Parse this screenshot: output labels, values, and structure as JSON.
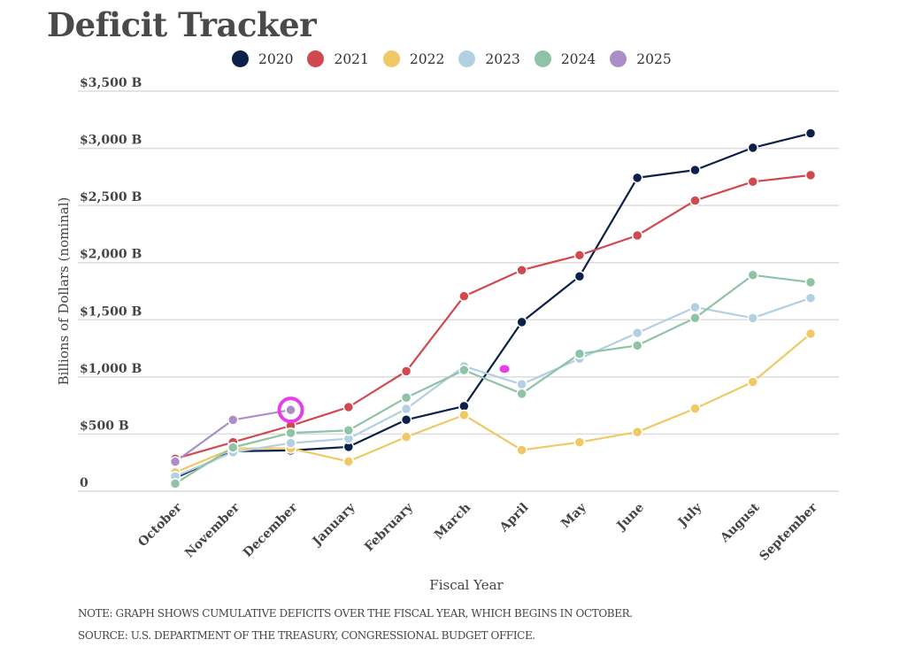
{
  "title": "Deficit Tracker",
  "chart_data": {
    "type": "line",
    "title": "Deficit Tracker",
    "xlabel": "Fiscal Year",
    "ylabel": "Billions of Dollars (nominal)",
    "ylim": [
      0,
      3500
    ],
    "grid": true,
    "legend_position": "top-center",
    "yticks": [
      {
        "value": 0,
        "label": "0"
      },
      {
        "value": 500,
        "label": "$500 B"
      },
      {
        "value": 1000,
        "label": "$1,000 B"
      },
      {
        "value": 1500,
        "label": "$1,500 B"
      },
      {
        "value": 2000,
        "label": "$2,000 B"
      },
      {
        "value": 2500,
        "label": "$2,500 B"
      },
      {
        "value": 3000,
        "label": "$3,000 B"
      },
      {
        "value": 3500,
        "label": "$3,500 B"
      }
    ],
    "categories": [
      "October",
      "November",
      "December",
      "January",
      "February",
      "March",
      "April",
      "May",
      "June",
      "July",
      "August",
      "September"
    ],
    "series": [
      {
        "name": "2020",
        "color": "#0b2149",
        "values": [
          115,
          349,
          357,
          388,
          625,
          744,
          1480,
          1880,
          2742,
          2810,
          3005,
          3131
        ]
      },
      {
        "name": "2021",
        "color": "#d0494f",
        "values": [
          284,
          429,
          573,
          736,
          1050,
          1706,
          1934,
          2065,
          2238,
          2543,
          2708,
          2765
        ]
      },
      {
        "name": "2022",
        "color": "#f0c966",
        "values": [
          165,
          375,
          375,
          260,
          475,
          667,
          360,
          429,
          518,
          723,
          956,
          1378
        ]
      },
      {
        "name": "2023",
        "color": "#b3d0e3",
        "values": [
          130,
          341,
          421,
          460,
          721,
          1093,
          935,
          1160,
          1385,
          1610,
          1515,
          1690
        ]
      },
      {
        "name": "2024",
        "color": "#8ec3a5",
        "values": [
          67,
          383,
          510,
          532,
          819,
          1060,
          853,
          1202,
          1275,
          1516,
          1891,
          1828
        ]
      },
      {
        "name": "2025",
        "color": "#ab8ec8",
        "values": [
          258,
          624,
          711
        ]
      }
    ],
    "annotations": [
      {
        "type": "highlight-ring",
        "color": "#e83ee8",
        "series": "2025",
        "category": "December"
      },
      {
        "type": "marker-dot",
        "color": "#e83ee8",
        "category_index": 5.7,
        "value": 1070
      }
    ]
  },
  "footnotes": {
    "note": "NOTE: GRAPH SHOWS CUMULATIVE DEFICITS OVER THE FISCAL YEAR, WHICH BEGINS IN OCTOBER.",
    "source": "SOURCE: U.S. DEPARTMENT OF THE TREASURY, CONGRESSIONAL BUDGET OFFICE."
  }
}
